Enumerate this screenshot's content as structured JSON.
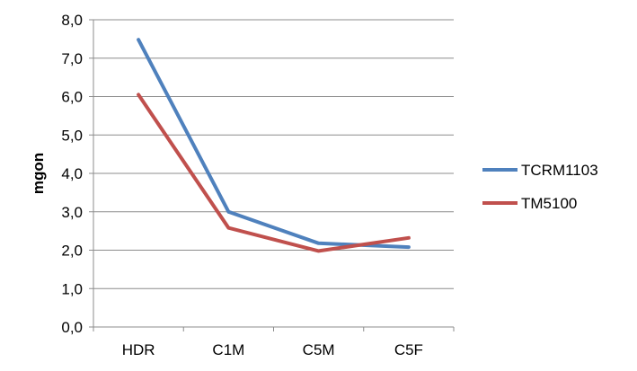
{
  "chart_data": {
    "type": "line",
    "categories": [
      "HDR",
      "C1M",
      "C5M",
      "C5F"
    ],
    "ylabel": "mgon",
    "ylim": [
      0,
      8
    ],
    "ytick_values": [
      0,
      1,
      2,
      3,
      4,
      5,
      6,
      7,
      8
    ],
    "ytick_labels": [
      "0,0",
      "1,0",
      "2,0",
      "3,0",
      "4,0",
      "5,0",
      "6,0",
      "7,0",
      "8,0"
    ],
    "grid": true,
    "legend_position": "right",
    "series": [
      {
        "name": "TCRM1103",
        "color": "#4f81bd",
        "values": [
          7.48,
          3.0,
          2.18,
          2.08
        ]
      },
      {
        "name": "TM5100",
        "color": "#c0504d",
        "values": [
          6.05,
          2.58,
          1.98,
          2.32
        ]
      }
    ]
  }
}
